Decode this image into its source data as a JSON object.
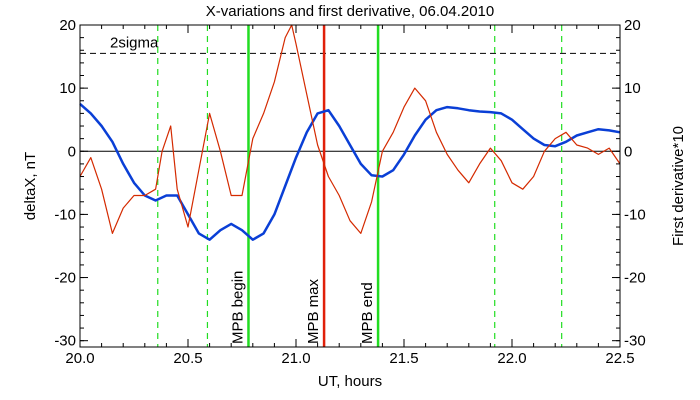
{
  "chart_data": {
    "type": "line",
    "title": "X-variations and first derivative, 06.04.2010",
    "xlabel": "UT, hours",
    "ylabel_left": "deltaX, nT",
    "ylabel_right": "First derivative*10",
    "xlim": [
      20.0,
      22.5
    ],
    "ylim_left": [
      -31,
      20
    ],
    "ylim_right": [
      -31,
      20
    ],
    "x_ticks": [
      "20.0",
      "20.5",
      "21.0",
      "21.5",
      "22.0",
      "22.5"
    ],
    "x_tick_values": [
      20.0,
      20.5,
      21.0,
      21.5,
      22.0,
      22.5
    ],
    "y_ticks_left": [
      "20",
      "10",
      "0",
      "-10",
      "-20",
      "-30"
    ],
    "y_ticks_right": [
      "20",
      "10",
      "0",
      "-10",
      "-20",
      "-30"
    ],
    "y_tick_values": [
      20,
      10,
      0,
      -10,
      -20,
      -30
    ],
    "grid": false,
    "zero_line": 0,
    "sigma_line": {
      "label": "2sigma",
      "value": 15.5
    },
    "series": [
      {
        "name": "deltaX",
        "axis": "left",
        "color": "#0a3fd6",
        "x": [
          20.0,
          20.05,
          20.1,
          20.15,
          20.2,
          20.25,
          20.3,
          20.35,
          20.4,
          20.45,
          20.5,
          20.55,
          20.6,
          20.65,
          20.7,
          20.75,
          20.8,
          20.85,
          20.9,
          20.95,
          21.0,
          21.05,
          21.1,
          21.15,
          21.2,
          21.25,
          21.3,
          21.35,
          21.4,
          21.45,
          21.5,
          21.55,
          21.6,
          21.65,
          21.7,
          21.75,
          21.8,
          21.85,
          21.9,
          21.95,
          22.0,
          22.05,
          22.1,
          22.15,
          22.2,
          22.25,
          22.3,
          22.35,
          22.4,
          22.45,
          22.5
        ],
        "y": [
          7.5,
          6.0,
          4.0,
          1.5,
          -2.0,
          -5.0,
          -7.0,
          -7.8,
          -7.0,
          -7.0,
          -10.0,
          -13.0,
          -14.0,
          -12.5,
          -11.5,
          -12.5,
          -14.0,
          -13.0,
          -10.0,
          -5.5,
          -1.0,
          3.0,
          6.0,
          6.5,
          4.0,
          1.0,
          -2.0,
          -3.8,
          -4.0,
          -3.0,
          -0.5,
          2.5,
          5.0,
          6.5,
          7.0,
          6.8,
          6.5,
          6.3,
          6.2,
          6.0,
          5.0,
          3.5,
          2.0,
          1.0,
          0.8,
          1.5,
          2.5,
          3.0,
          3.5,
          3.3,
          3.0
        ]
      },
      {
        "name": "First derivative*10",
        "axis": "right",
        "color": "#d42a00",
        "x": [
          20.0,
          20.05,
          20.1,
          20.15,
          20.2,
          20.25,
          20.3,
          20.35,
          20.38,
          20.42,
          20.45,
          20.5,
          20.55,
          20.6,
          20.65,
          20.7,
          20.75,
          20.8,
          20.85,
          20.9,
          20.95,
          20.98,
          21.0,
          21.05,
          21.1,
          21.15,
          21.2,
          21.25,
          21.3,
          21.35,
          21.4,
          21.45,
          21.5,
          21.55,
          21.6,
          21.65,
          21.7,
          21.75,
          21.8,
          21.85,
          21.9,
          21.95,
          22.0,
          22.05,
          22.1,
          22.15,
          22.2,
          22.25,
          22.3,
          22.35,
          22.4,
          22.45,
          22.5
        ],
        "y": [
          -4.0,
          -1.0,
          -6.0,
          -13.0,
          -9.0,
          -7.0,
          -7.0,
          -6.0,
          0.0,
          4.0,
          -6.0,
          -12.0,
          -3.0,
          6.0,
          0.0,
          -7.0,
          -7.0,
          2.0,
          6.0,
          11.0,
          18.0,
          20.0,
          17.0,
          9.0,
          1.0,
          -4.0,
          -7.0,
          -11.0,
          -13.0,
          -8.0,
          0.0,
          3.0,
          7.0,
          10.0,
          8.0,
          3.0,
          -0.5,
          -3.0,
          -5.0,
          -2.0,
          0.5,
          -1.5,
          -5.0,
          -6.0,
          -4.0,
          0.0,
          2.0,
          3.0,
          1.0,
          0.5,
          -0.5,
          0.5,
          -2.0
        ]
      }
    ],
    "vlines": [
      {
        "x": 20.36,
        "color": "#22dd22",
        "style": "dashed",
        "label": ""
      },
      {
        "x": 20.59,
        "color": "#22dd22",
        "style": "dashed",
        "label": ""
      },
      {
        "x": 20.78,
        "color": "#22dd22",
        "style": "solid",
        "label": "MPB begin"
      },
      {
        "x": 21.13,
        "color": "#e0200a",
        "style": "solid",
        "label": "MPB max"
      },
      {
        "x": 21.38,
        "color": "#22dd22",
        "style": "solid",
        "label": "MPB end"
      },
      {
        "x": 21.92,
        "color": "#22dd22",
        "style": "dashed",
        "label": ""
      },
      {
        "x": 22.23,
        "color": "#22dd22",
        "style": "dashed",
        "label": ""
      }
    ]
  }
}
